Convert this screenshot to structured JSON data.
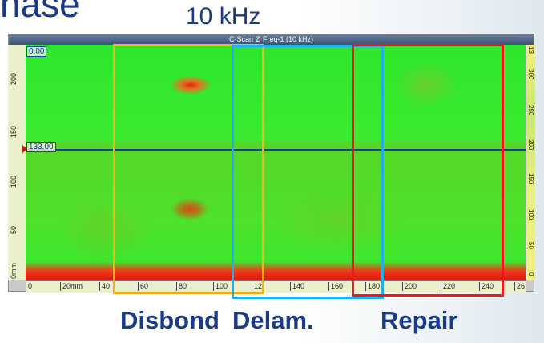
{
  "slide": {
    "title_fragment": "nase",
    "frequency_label": "10 kHz"
  },
  "cscan": {
    "window_title": "C-Scan Ø Freq-1 (10 kHz)",
    "top_value": "0.00",
    "cursor_value": "133.00",
    "left_ruler_ticks": [
      "0mm",
      "50",
      "100",
      "150",
      "200"
    ],
    "bottom_ruler_ticks": [
      "0",
      "20mm",
      "40",
      "60",
      "80",
      "100",
      "12",
      "140",
      "160",
      "180",
      "200",
      "220",
      "240",
      "26"
    ],
    "right_bar_ticks": [
      "13",
      "300",
      "250",
      "200",
      "150",
      "100",
      "50",
      "0"
    ],
    "colors": {
      "base": "#3aeb30",
      "defect": "#e02a10",
      "cursor_line": "#1d3aa0"
    }
  },
  "regions": {
    "disbond": {
      "label": "Disbond",
      "color": "#f5b21a"
    },
    "delam": {
      "label": "Delam.",
      "color": "#22b0e6"
    },
    "repair": {
      "label": "Repair",
      "color": "#e81c1c"
    }
  }
}
